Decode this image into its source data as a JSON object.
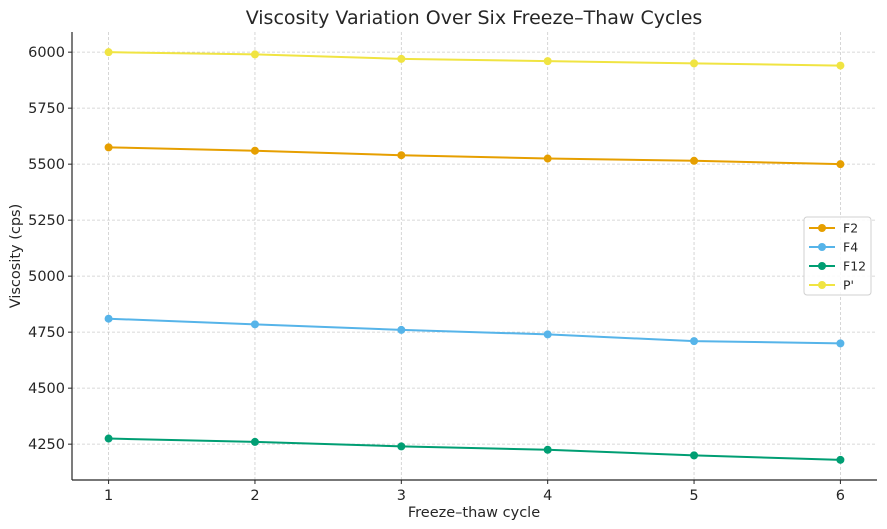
{
  "chart_data": {
    "type": "line",
    "title": "Viscosity Variation Over Six Freeze–Thaw Cycles",
    "xlabel": "Freeze–thaw cycle",
    "ylabel": "Viscosity (cps)",
    "x": [
      1,
      2,
      3,
      4,
      5,
      6
    ],
    "x_ticks": [
      "1",
      "2",
      "3",
      "4",
      "5",
      "6"
    ],
    "xlim": [
      0.75,
      6.25
    ],
    "y_ticks": [
      4250,
      4500,
      4750,
      5000,
      5250,
      5500,
      5750,
      6000
    ],
    "ylim": [
      4090,
      6090
    ],
    "grid": true,
    "legend_position": "center-right",
    "series": [
      {
        "name": "F2",
        "color": "#E69F00",
        "values": [
          5575,
          5560,
          5540,
          5525,
          5515,
          5500
        ]
      },
      {
        "name": "F4",
        "color": "#56B4E9",
        "values": [
          4810,
          4785,
          4760,
          4740,
          4710,
          4700
        ]
      },
      {
        "name": "F12",
        "color": "#009E73",
        "values": [
          4275,
          4260,
          4240,
          4225,
          4200,
          4180
        ]
      },
      {
        "name": "P'",
        "color": "#F0E442",
        "values": [
          6000,
          5990,
          5970,
          5960,
          5950,
          5940
        ]
      }
    ]
  }
}
